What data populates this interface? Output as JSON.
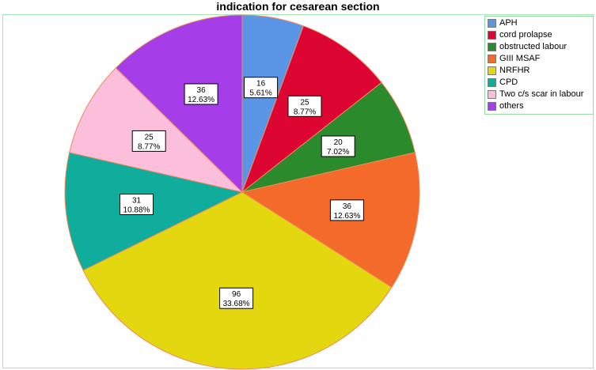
{
  "chart_data": {
    "type": "pie",
    "title": "indication for cesarean section",
    "start_angle_deg": 0,
    "direction": "clockwise",
    "legend_position": "right-top",
    "slices": [
      {
        "name": "APH",
        "count": "16",
        "percent": "5.61%",
        "value": 16,
        "color": "#5b96e6"
      },
      {
        "name": "cord prolapse",
        "count": "25",
        "percent": "8.77%",
        "value": 25,
        "color": "#dd0633"
      },
      {
        "name": "obstructed labour",
        "count": "20",
        "percent": "7.02%",
        "value": 20,
        "color": "#2b8a2b"
      },
      {
        "name": "GIII MSAF",
        "count": "36",
        "percent": "12.63%",
        "value": 36,
        "color": "#f46a2b"
      },
      {
        "name": "NRFHR",
        "count": "96",
        "percent": "33.68%",
        "value": 96,
        "color": "#e3d70f"
      },
      {
        "name": "CPD",
        "count": "31",
        "percent": "10.88%",
        "value": 31,
        "color": "#10ac9c"
      },
      {
        "name": "Two c/s scar in labour",
        "count": "25",
        "percent": "8.77%",
        "value": 25,
        "color": "#fbbfdc"
      },
      {
        "name": "others",
        "count": "36",
        "percent": "12.63%",
        "value": 36,
        "color": "#a53ee8"
      }
    ]
  }
}
